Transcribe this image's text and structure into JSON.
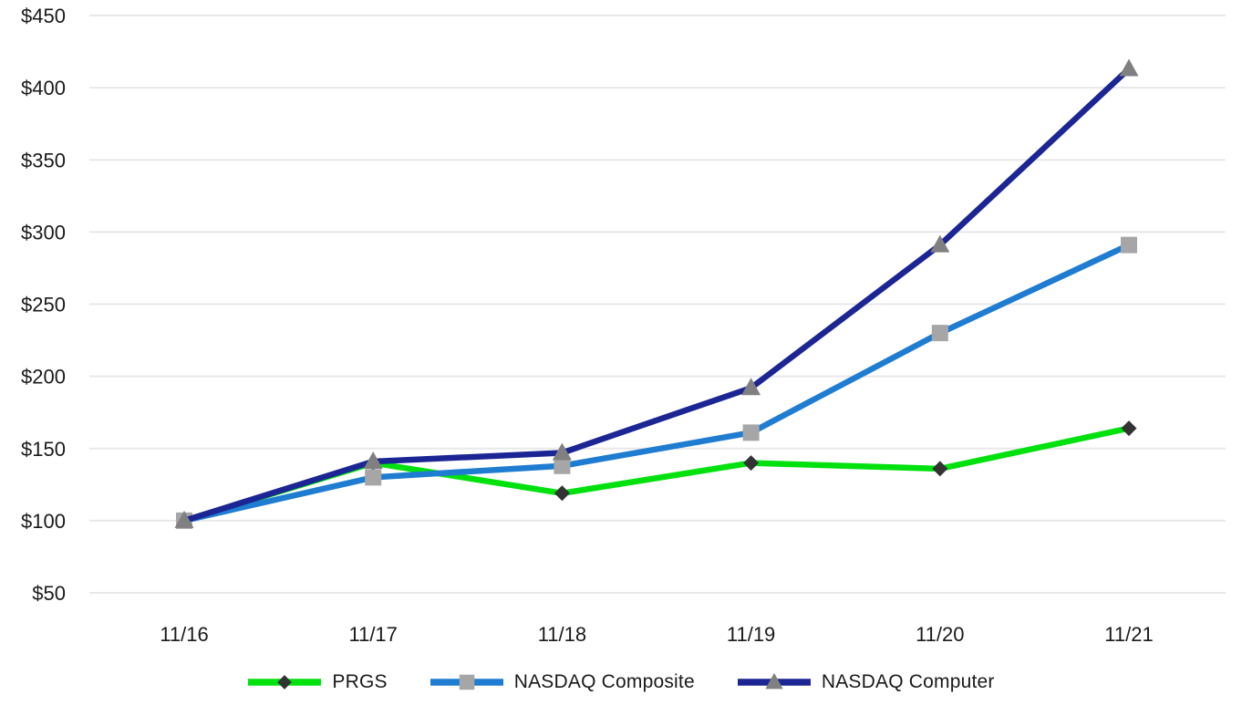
{
  "chart_data": {
    "type": "line",
    "title": "",
    "xlabel": "",
    "ylabel": "",
    "grid": true,
    "legend_position": "bottom",
    "x_categories": [
      "11/16",
      "11/17",
      "11/18",
      "11/19",
      "11/20",
      "11/21"
    ],
    "y_ticks": {
      "values": [
        450,
        400,
        350,
        300,
        250,
        200,
        150,
        100,
        50
      ],
      "labels": [
        "$450",
        "$400",
        "$350",
        "$300",
        "$250",
        "$200",
        "$150",
        "$100",
        "$50"
      ]
    },
    "ylim": [
      50,
      450
    ],
    "series": [
      {
        "name": "PRGS",
        "values": [
          100,
          140,
          119,
          140,
          136,
          164
        ],
        "line_color": "#00E10E",
        "marker": "diamond",
        "marker_color": "#333333"
      },
      {
        "name": "NASDAQ Composite",
        "values": [
          100,
          130,
          138,
          161,
          230,
          291
        ],
        "line_color": "#1E7CD1",
        "marker": "square",
        "marker_color": "#A6A6A6"
      },
      {
        "name": "NASDAQ Computer",
        "values": [
          100,
          141,
          147,
          192,
          291,
          413
        ],
        "line_color": "#1B2593",
        "marker": "triangle",
        "marker_color": "#808080"
      }
    ]
  },
  "colors": {
    "background": "#FFFFFF",
    "gridline": "#E8E8E8",
    "axis_text": "#1A1A1A"
  }
}
